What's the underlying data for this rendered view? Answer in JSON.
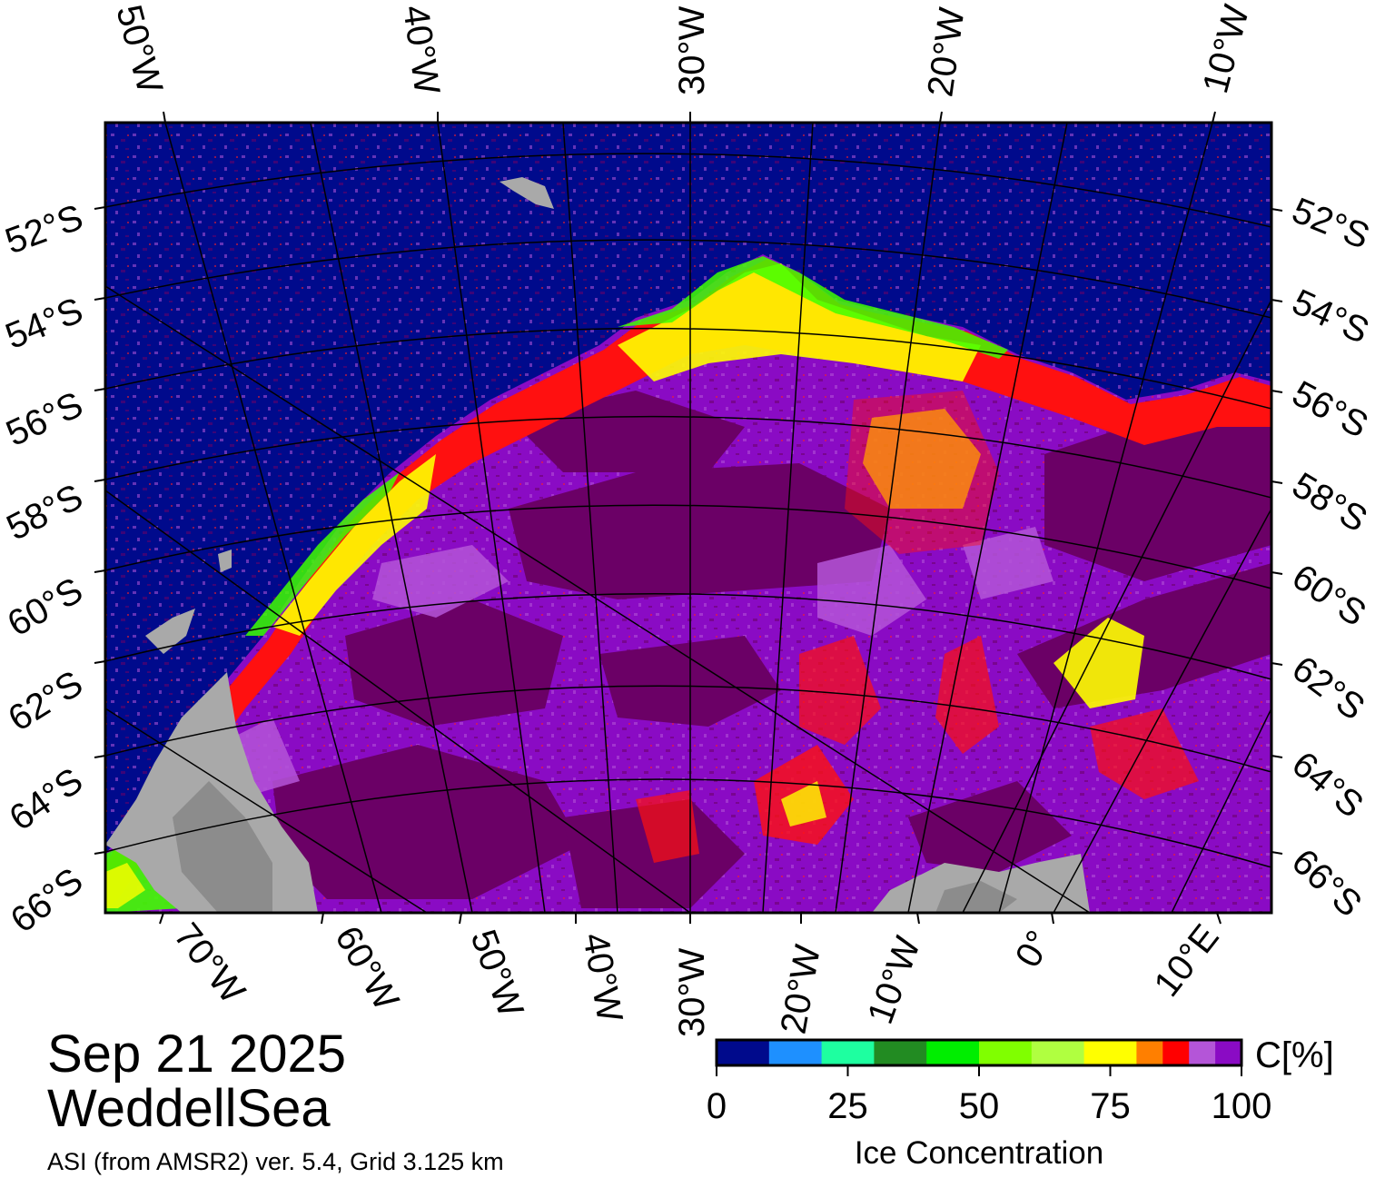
{
  "title": {
    "date": "Sep 21 2025",
    "region": "WeddellSea",
    "product": "ASI (from AMSR2) ver. 5.4,  Grid 3.125 km"
  },
  "map": {
    "projection_labels": {
      "top_longitudes": [
        "50°W",
        "40°W",
        "30°W",
        "20°W",
        "10°W"
      ],
      "bottom_longitudes": [
        "70°W",
        "60°W",
        "50°W",
        "40°W",
        "30°W",
        "20°W",
        "10°W",
        "0°",
        "10°E"
      ],
      "left_latitudes": [
        "52°S",
        "54°S",
        "56°S",
        "58°S",
        "60°S",
        "62°S",
        "64°S",
        "66°S"
      ],
      "right_latitudes": [
        "52°S",
        "54°S",
        "56°S",
        "58°S",
        "60°S",
        "62°S",
        "64°S",
        "66°S"
      ]
    },
    "surface_colors": {
      "open_water": "#000a8c",
      "land": "#a9a9a9",
      "land_shadow": "#8c8c8c",
      "pack_ice_dark": "#6b0066",
      "pack_ice": "#8a0bc4",
      "pack_ice_light": "#b455d8",
      "ice_edge_red": "#ff1010",
      "ice_edge_yellow": "#ffff00",
      "ice_edge_green": "#40ff00"
    }
  },
  "colorbar": {
    "title": "Ice Concentration",
    "unit": "C[%]",
    "ticks": [
      "0",
      "25",
      "50",
      "75",
      "100"
    ],
    "colors": [
      "#000a8c",
      "#1e90ff",
      "#1effa0",
      "#228b22",
      "#00ee00",
      "#80ff00",
      "#b0ff40",
      "#ffff00",
      "#ff7f00",
      "#ff0000",
      "#b455d8",
      "#8a0bc4"
    ]
  }
}
